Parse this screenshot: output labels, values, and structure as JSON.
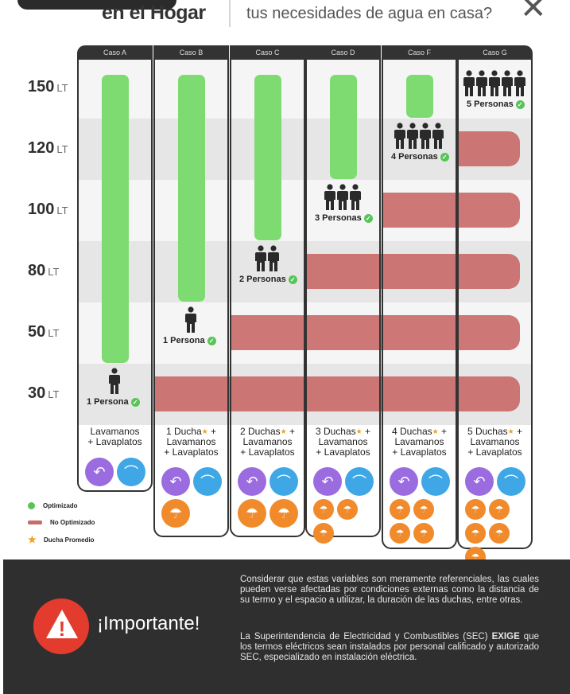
{
  "header": {
    "title": "en el Hogar",
    "question": "tus necesidades de agua en casa?",
    "close_label": "✕"
  },
  "y_labels": [
    {
      "value": "150",
      "unit": "LT"
    },
    {
      "value": "120",
      "unit": "LT"
    },
    {
      "value": "100",
      "unit": "LT"
    },
    {
      "value": "80",
      "unit": "LT"
    },
    {
      "value": "50",
      "unit": "LT"
    },
    {
      "value": "30",
      "unit": "LT"
    }
  ],
  "cases": [
    {
      "name": "Caso A",
      "people_count": 1,
      "people_label": "1 Persona",
      "desc1": "Lavamanos",
      "desc2": "+ Lavaplatos",
      "desc3": "",
      "showers": 0,
      "level_lt": 30
    },
    {
      "name": "Caso B",
      "people_count": 1,
      "people_label": "1 Persona",
      "desc1": "1 Ducha",
      "desc2": "Lavamanos",
      "desc3": "+ Lavaplatos",
      "showers": 1,
      "level_lt": 50
    },
    {
      "name": "Caso C",
      "people_count": 2,
      "people_label": "2 Personas",
      "desc1": "2 Duchas",
      "desc2": "Lavamanos",
      "desc3": "+ Lavaplatos",
      "showers": 2,
      "level_lt": 80
    },
    {
      "name": "Caso D",
      "people_count": 3,
      "people_label": "3 Personas",
      "desc1": "3 Duchas",
      "desc2": "Lavamanos",
      "desc3": "+ Lavaplatos",
      "showers": 3,
      "level_lt": 100
    },
    {
      "name": "Caso F",
      "people_count": 4,
      "people_label": "4 Personas",
      "desc1": "4 Duchas",
      "desc2": "Lavamanos",
      "desc3": "+ Lavaplatos",
      "showers": 4,
      "level_lt": 120
    },
    {
      "name": "Caso G",
      "people_count": 5,
      "people_label": "5 Personas",
      "desc1": "5 Duchas",
      "desc2": "Lavamanos",
      "desc3": "+ Lavaplatos",
      "showers": 5,
      "level_lt": 150
    }
  ],
  "legend": {
    "optimized": "Optimizado",
    "not_optimized": "No Optimizado",
    "avg_shower": "Ducha Promedio"
  },
  "colors": {
    "optimized": "#7edb71",
    "not_optimized": "#c96b6b",
    "faucet": "#9b6be0",
    "tap": "#3fa7e6",
    "shower": "#f08a2a",
    "alert": "#e33b2e"
  },
  "footer": {
    "title": "¡Importante!",
    "para1": "Considerar que estas variables son meramente referenciales, las cuales pueden verse afectadas por condiciones externas como la distancia de su termo y el espacio a utilizar, la duración de las duchas, entre otras.",
    "para2_pre": "La Superintendencia de Electricidad y Combustibles (SEC) ",
    "para2_bold": "EXIGE",
    "para2_post": " que los termos eléctricos sean instalados por personal calificado y autorizado SEC, especializado en instalación eléctrica."
  }
}
